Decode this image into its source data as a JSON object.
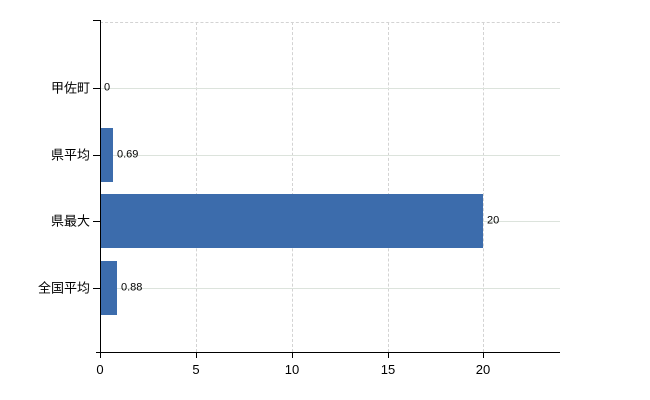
{
  "chart_data": {
    "type": "bar",
    "orientation": "horizontal",
    "title": "",
    "xlabel": "",
    "ylabel": "",
    "categories": [
      "甲佐町",
      "県平均",
      "県最大",
      "全国平均"
    ],
    "values": [
      0,
      0.69,
      20,
      0.88
    ],
    "value_labels": [
      "0",
      "0.69",
      "20",
      "0.88"
    ],
    "x_ticks": [
      0,
      5,
      10,
      15,
      20
    ],
    "x_tick_labels": [
      "0",
      "5",
      "10",
      "15",
      "20"
    ],
    "xlim": [
      0,
      24
    ],
    "grid": "on",
    "legend": "none",
    "colors": {
      "bar": "#3c6cac",
      "h_gridline": "#dce3dc",
      "v_gridline": "#d3d3d3",
      "axis": "#000000",
      "text": "#000000",
      "background": "#ffffff"
    }
  }
}
